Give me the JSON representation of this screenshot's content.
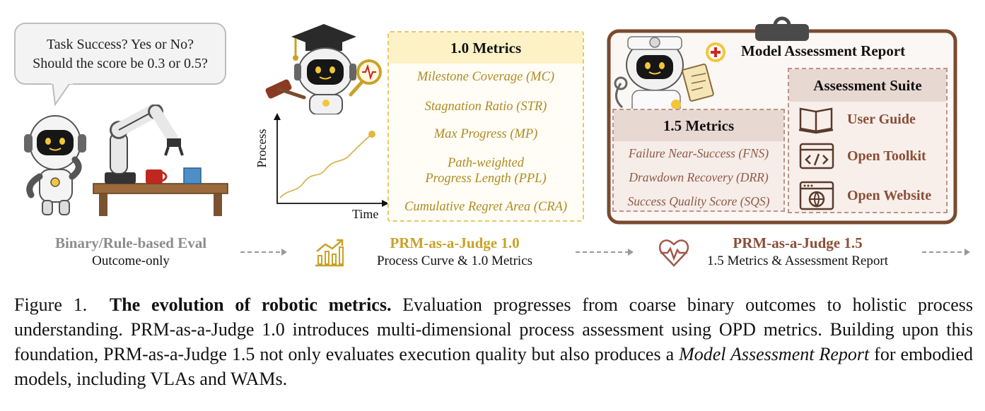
{
  "panel1": {
    "bubble_line1": "Task Success? Yes or No?",
    "bubble_line2": "Should the score be 0.3 or 0.5?",
    "stage_title": "Binary/Rule-based Eval",
    "stage_sub": "Outcome-only"
  },
  "panel2": {
    "metrics_title": "1.0 Metrics",
    "metrics": [
      "Milestone Coverage (MC)",
      "Stagnation Ratio (STR)",
      "Max Progress (MP)",
      "Path-weighted",
      "Progress Length (PPL)",
      "Cumulative Regret Area (CRA)"
    ],
    "chart_ylabel": "Process",
    "chart_xlabel": "Time",
    "stage_title": "PRM-as-a-Judge 1.0",
    "stage_sub": "Process Curve & 1.0 Metrics"
  },
  "panel3": {
    "report_title": "Model Assessment Report",
    "metrics_title": "1.5 Metrics",
    "metrics": [
      "Failure Near-Success (FNS)",
      "Drawdown Recovery (DRR)",
      "Success Quality Score (SQS)"
    ],
    "suite_title": "Assessment Suite",
    "suite_items": [
      "User Guide",
      "Open Toolkit",
      "Open Website"
    ],
    "stage_title": "PRM-as-a-Judge 1.5",
    "stage_sub": "1.5 Metrics & Assessment Report"
  },
  "caption": {
    "label": "Figure 1.",
    "bold": "The evolution of robotic metrics.",
    "text1": " Evaluation progresses from coarse binary outcomes to holistic process understanding. PRM-as-a-Judge 1.0 introduces multi-dimensional process assessment using OPD metrics. Building upon this foundation, PRM-as-a-Judge 1.5 not only evaluates execution quality but also produces a ",
    "italic": "Model Assessment Report",
    "text2": " for embodied models, including VLAs and WAMs."
  },
  "colors": {
    "gold": "#b08a22",
    "gold_light": "#fdf2c6",
    "brown": "#8a4e36",
    "brown_light": "#e8d8d2",
    "gray_title": "#8c8c8c"
  }
}
